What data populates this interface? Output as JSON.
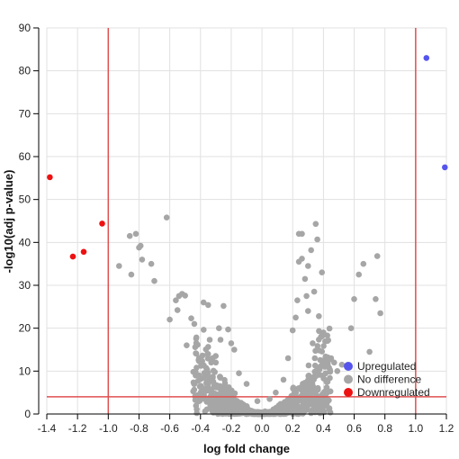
{
  "chart_data": {
    "type": "scatter",
    "title": "",
    "xlabel": "log fold change",
    "ylabel": "-log10(adj p-value)",
    "xlim": [
      -1.4,
      1.2
    ],
    "ylim": [
      0,
      90
    ],
    "x_ticks": [
      "-1.4",
      "-1.2",
      "-1.0",
      "-0.8",
      "-0.6",
      "-0.4",
      "-0.2",
      "0.0",
      "0.2",
      "0.4",
      "0.6",
      "0.8",
      "1.0",
      "1.2"
    ],
    "y_ticks": [
      "0",
      "10",
      "20",
      "30",
      "40",
      "50",
      "60",
      "70",
      "80",
      "90"
    ],
    "grid": true,
    "legend_position": "bottom-right",
    "thresholds": {
      "x": [
        -1.0,
        1.0
      ],
      "y": 4,
      "color": "#e05050"
    },
    "series": [
      {
        "name": "Upregulated",
        "color": "#5555ee",
        "points": [
          [
            1.07,
            83
          ],
          [
            1.19,
            57.5
          ]
        ]
      },
      {
        "name": "No difference",
        "color": "#a6a6a6",
        "points": [
          [
            -0.93,
            34.5
          ],
          [
            -0.86,
            41.5
          ],
          [
            -0.85,
            32.5
          ],
          [
            -0.82,
            42
          ],
          [
            -0.8,
            38.8
          ],
          [
            -0.79,
            39.2
          ],
          [
            -0.78,
            36
          ],
          [
            -0.72,
            35
          ],
          [
            -0.7,
            31
          ],
          [
            -0.62,
            45.8
          ],
          [
            -0.6,
            22
          ],
          [
            -0.56,
            26.5
          ],
          [
            -0.55,
            24.2
          ],
          [
            -0.54,
            27.5
          ],
          [
            -0.52,
            28
          ],
          [
            -0.5,
            27.6
          ],
          [
            -0.49,
            16
          ],
          [
            -0.46,
            22.3
          ],
          [
            -0.44,
            21
          ],
          [
            -0.41,
            9
          ],
          [
            -0.38,
            26
          ],
          [
            -0.35,
            25.4
          ],
          [
            -0.34,
            17.3
          ],
          [
            -0.33,
            12
          ],
          [
            -0.3,
            12
          ],
          [
            -0.28,
            20
          ],
          [
            -0.27,
            17.3
          ],
          [
            -0.25,
            25.2
          ],
          [
            -0.22,
            19.7
          ],
          [
            -0.2,
            16.5
          ],
          [
            -0.18,
            15
          ],
          [
            -0.15,
            9.5
          ],
          [
            -0.1,
            7
          ],
          [
            -0.03,
            3
          ],
          [
            0.02,
            0.6
          ],
          [
            0.05,
            3.5
          ],
          [
            0.09,
            5
          ],
          [
            0.14,
            8
          ],
          [
            0.17,
            13
          ],
          [
            0.2,
            19.5
          ],
          [
            0.22,
            22.5
          ],
          [
            0.23,
            26.5
          ],
          [
            0.24,
            35.5
          ],
          [
            0.24,
            42
          ],
          [
            0.26,
            36.2
          ],
          [
            0.26,
            42
          ],
          [
            0.28,
            31.5
          ],
          [
            0.29,
            27.5
          ],
          [
            0.3,
            24
          ],
          [
            0.3,
            34.5
          ],
          [
            0.32,
            38.2
          ],
          [
            0.33,
            16.5
          ],
          [
            0.34,
            28.5
          ],
          [
            0.35,
            44.3
          ],
          [
            0.36,
            40.7
          ],
          [
            0.37,
            22.8
          ],
          [
            0.39,
            33
          ],
          [
            0.4,
            19
          ],
          [
            0.41,
            11
          ],
          [
            0.42,
            7.5
          ],
          [
            0.45,
            13
          ],
          [
            0.47,
            12
          ],
          [
            0.49,
            10
          ],
          [
            0.52,
            11.5
          ],
          [
            0.58,
            20
          ],
          [
            0.6,
            26.8
          ],
          [
            0.63,
            32.5
          ],
          [
            0.66,
            35
          ],
          [
            0.7,
            14.5
          ],
          [
            0.74,
            26.8
          ],
          [
            0.75,
            36.8
          ],
          [
            0.77,
            23.5
          ]
        ]
      },
      {
        "name": "Downregulated",
        "color": "#ee1111",
        "points": [
          [
            -1.38,
            55.2
          ],
          [
            -1.23,
            36.7
          ],
          [
            -1.16,
            37.8
          ],
          [
            -1.04,
            44.4
          ]
        ]
      }
    ]
  }
}
